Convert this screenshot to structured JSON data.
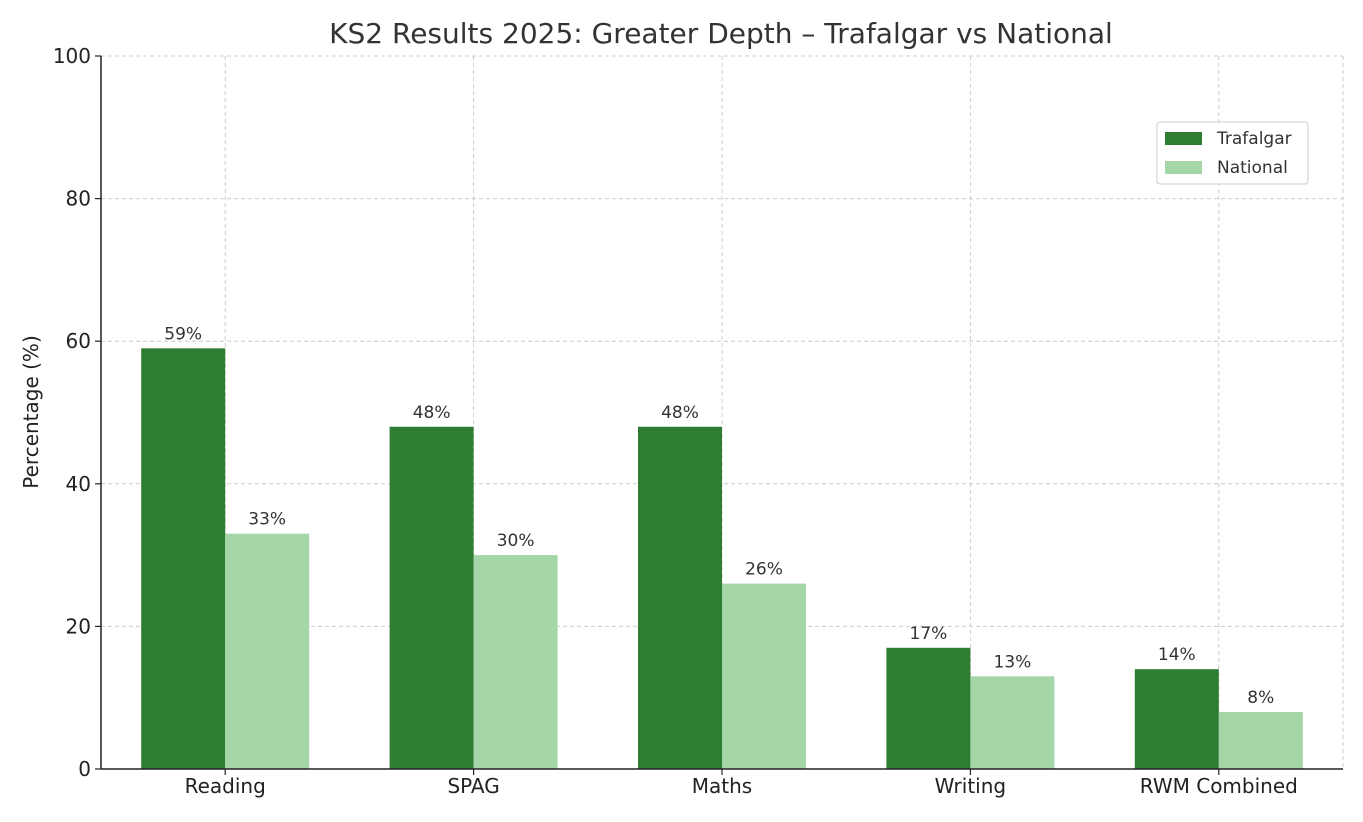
{
  "chart_data": {
    "type": "bar",
    "title": "KS2 Results 2025: Greater Depth – Trafalgar vs National",
    "xlabel": "",
    "ylabel": "Percentage (%)",
    "ylim": [
      0,
      100
    ],
    "yticks": [
      0,
      20,
      40,
      60,
      80,
      100
    ],
    "grid": true,
    "legend_position": "top-right",
    "categories": [
      "Reading",
      "SPAG",
      "Maths",
      "Writing",
      "RWM Combined"
    ],
    "series": [
      {
        "name": "Trafalgar",
        "color": "#2e7d32",
        "values": [
          59,
          48,
          48,
          17,
          14
        ],
        "labels": [
          "59%",
          "48%",
          "48%",
          "17%",
          "14%"
        ]
      },
      {
        "name": "National",
        "color": "#a5d6a7",
        "values": [
          33,
          30,
          26,
          13,
          8
        ],
        "labels": [
          "33%",
          "30%",
          "26%",
          "13%",
          "8%"
        ]
      }
    ]
  }
}
